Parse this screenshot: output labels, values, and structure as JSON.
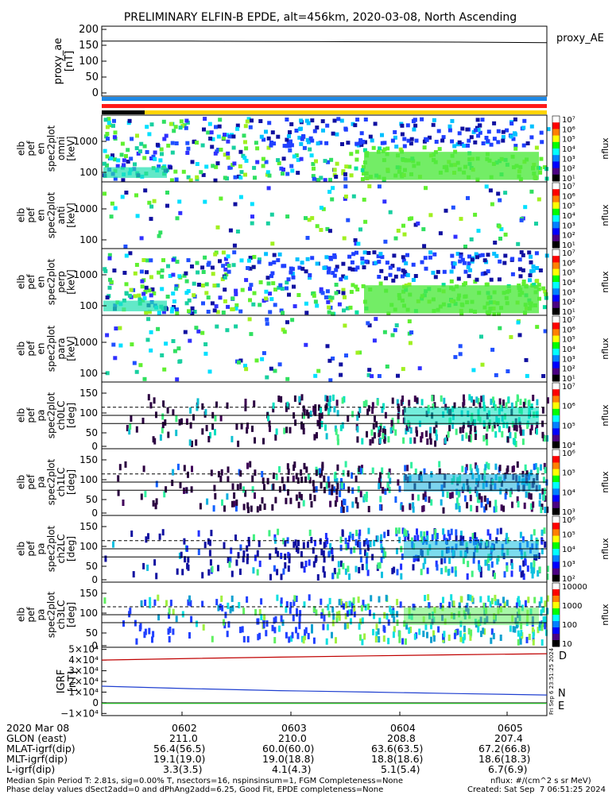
{
  "title": "PRELIMINARY ELFIN-B EPDE, alt=456km, 2020-03-08, North Ascending",
  "colors": {
    "bar_blue": "#1e88e5",
    "bar_red": "#ff1a1a",
    "bar_yellow": "#ffd400",
    "bar_black": "#000000",
    "grf_d": "#c00000",
    "grf_n": "#1f3fd0",
    "grf_e": "#18c018"
  },
  "chart_data": [
    {
      "type": "line",
      "id": "proxy_ae",
      "ylabel_lines": [
        "proxy_ae",
        "[nT]"
      ],
      "legend": "proxy_AE",
      "yticks": [
        "200",
        "150",
        "100",
        "50",
        "0"
      ],
      "ylim": [
        -10,
        210
      ],
      "series": [
        {
          "name": "proxy_AE",
          "values": [
            163,
            163,
            162,
            161,
            160,
            158
          ]
        }
      ]
    },
    {
      "type": "heatmap",
      "id": "spec_omni",
      "ylabel_lines": [
        "elb",
        "pef",
        "en",
        "spec2plot",
        "omni",
        "[keV]"
      ],
      "yticks": [
        "1000",
        "100"
      ],
      "cbar_label": "nflux",
      "cbar_ticks": [
        "10⁷",
        "10⁶",
        "10⁵",
        "10⁴",
        "10³",
        "10²",
        "10¹"
      ]
    },
    {
      "type": "heatmap",
      "id": "spec_anti",
      "ylabel_lines": [
        "elb",
        "pef",
        "en",
        "spec2plot",
        "anti",
        "[keV]"
      ],
      "yticks": [
        "1000",
        "100"
      ],
      "cbar_label": "nflux",
      "cbar_ticks": [
        "10⁷",
        "10⁶",
        "10⁵",
        "10⁴",
        "10³",
        "10²",
        "10¹"
      ]
    },
    {
      "type": "heatmap",
      "id": "spec_perp",
      "ylabel_lines": [
        "elb",
        "pef",
        "en",
        "spec2plot",
        "perp",
        "[keV]"
      ],
      "yticks": [
        "1000",
        "100"
      ],
      "cbar_label": "nflux",
      "cbar_ticks": [
        "10⁷",
        "10⁶",
        "10⁵",
        "10⁴",
        "10³",
        "10²",
        "10¹"
      ]
    },
    {
      "type": "heatmap",
      "id": "spec_para",
      "ylabel_lines": [
        "elb",
        "pef",
        "en",
        "spec2plot",
        "para",
        "[keV]"
      ],
      "yticks": [
        "1000",
        "100"
      ],
      "cbar_label": "nflux",
      "cbar_ticks": [
        "10⁷",
        "10⁶",
        "10⁵",
        "10⁴",
        "10³",
        "10²",
        "10¹"
      ]
    },
    {
      "type": "heatmap",
      "id": "pa_ch0",
      "ylabel_lines": [
        "elb",
        "pef",
        "pa",
        "spec2plot",
        "ch0LC",
        "[deg]"
      ],
      "yticks": [
        "150",
        "100",
        "50",
        "0"
      ],
      "cbar_label": "nflux",
      "cbar_ticks": [
        "10⁷",
        "10⁶",
        "10⁵",
        "10⁴"
      ]
    },
    {
      "type": "heatmap",
      "id": "pa_ch1",
      "ylabel_lines": [
        "elb",
        "pef",
        "pa",
        "spec2plot",
        "ch1LC",
        "[deg]"
      ],
      "yticks": [
        "150",
        "100",
        "50",
        "0"
      ],
      "cbar_label": "nflux",
      "cbar_ticks": [
        "10⁶",
        "10⁵",
        "10⁴",
        "10³"
      ]
    },
    {
      "type": "heatmap",
      "id": "pa_ch2",
      "ylabel_lines": [
        "elb",
        "pef",
        "pa",
        "spec2plot",
        "ch2LC",
        "[deg]"
      ],
      "yticks": [
        "150",
        "100",
        "50",
        "0"
      ],
      "cbar_label": "nflux",
      "cbar_ticks": [
        "10⁶",
        "10⁵",
        "10⁴",
        "10³",
        "10²"
      ]
    },
    {
      "type": "heatmap",
      "id": "pa_ch3",
      "ylabel_lines": [
        "elb",
        "pef",
        "pa",
        "spec2plot",
        "ch3LC",
        "[deg]"
      ],
      "yticks": [
        "150",
        "100",
        "50",
        "0"
      ],
      "cbar_label": "nflux",
      "cbar_ticks": [
        "10000",
        "1000",
        "100",
        "10"
      ]
    },
    {
      "type": "line",
      "id": "igrf",
      "ylabel_lines": [
        "IGRF",
        "[nT]"
      ],
      "yticks": [
        "5×10⁴",
        "4×10⁴",
        "3×10⁴",
        "2×10⁴",
        "1×10⁴",
        "0",
        "−1×10⁴"
      ],
      "ylim": [
        -12000,
        52000
      ],
      "series": [
        {
          "name": "D",
          "values": [
            40000,
            41500,
            42800,
            44000,
            45000,
            46000
          ]
        },
        {
          "name": "N",
          "values": [
            15500,
            13200,
            11400,
            10000,
            8600,
            7300
          ]
        },
        {
          "name": "E",
          "values": [
            -600,
            -600,
            -600,
            -600,
            -600,
            -600
          ]
        }
      ],
      "side_stamp": "Fri Sep  6 23:51:25 2024"
    }
  ],
  "orbit_table": {
    "date": "2020 Mar 08",
    "times": [
      "0602",
      "0603",
      "0604",
      "0605"
    ],
    "rows": [
      {
        "label": "GLON (east)",
        "values": [
          "211.0",
          "210.0",
          "208.8",
          "207.4"
        ]
      },
      {
        "label": "MLAT-igrf(dip)",
        "values": [
          "56.4(56.5)",
          "60.0(60.0)",
          "63.6(63.5)",
          "67.2(66.8)"
        ]
      },
      {
        "label": "MLT-igrf(dip)",
        "values": [
          "19.1(19.0)",
          "19.0(18.8)",
          "18.8(18.6)",
          "18.6(18.3)"
        ]
      },
      {
        "label": "L-igrf(dip)",
        "values": [
          "3.3(3.5)",
          "4.1(4.3)",
          "5.1(5.4)",
          "6.7(6.9)"
        ]
      }
    ]
  },
  "footer": {
    "line1_left": "Median Spin Period T: 2.81s, sig=0.00% T, nsectors=16, nspinsinsum=1, FGM Completeness=None",
    "line1_right": "nflux: #/(cm^2 s sr MeV)",
    "line2_left": "Phase delay values dSect2add=0 and dPhAng2add=6.25, Good Fit, EPDE completeness=None",
    "line2_right": "Created: Sat Sep  7 06:51:25 2024"
  }
}
